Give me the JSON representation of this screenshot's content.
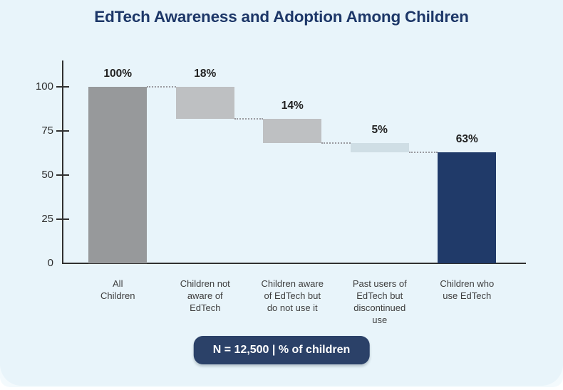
{
  "title": "EdTech Awareness and Adoption Among Children",
  "footer": {
    "badge": "N = 12,500 | % of children"
  },
  "colors": {
    "card_background": "#e8f4fa",
    "card_under_layer": "#f3fafd",
    "page_background": "#ffffff",
    "title": "#1d3768",
    "axis": "#303030",
    "tick_label": "#2d2d2d",
    "value_label": "#222222",
    "category_label": "#3d3d3d",
    "connector": "#9a9aa0",
    "badge_background": "#2b4168",
    "badge_text": "#ffffff",
    "bar_total_start": "#97999b",
    "bar_decrement": "#bec0c2",
    "bar_decrement_small": "#cfdee5",
    "bar_total_end": "#203a69"
  },
  "chart_data": {
    "type": "bar",
    "subtype": "waterfall",
    "title": "EdTech Awareness and Adoption Among Children",
    "xlabel": "",
    "ylabel": "",
    "ylim": [
      0,
      100
    ],
    "yticks": [
      0,
      25,
      50,
      75,
      100
    ],
    "grid": false,
    "legend": "none",
    "annotation": "N = 12,500 | % of children",
    "connector_style": "dotted",
    "bars": [
      {
        "category": "All\nChildren",
        "value": 100,
        "value_label": "100%",
        "start": 0,
        "end": 100,
        "color": "#97999b",
        "role": "total-start"
      },
      {
        "category": "Children not\naware of\nEdTech",
        "value": 18,
        "value_label": "18%",
        "start": 100,
        "end": 82,
        "color": "#bec0c2",
        "role": "decrement"
      },
      {
        "category": "Children aware\nof EdTech but\ndo not use it",
        "value": 14,
        "value_label": "14%",
        "start": 82,
        "end": 68,
        "color": "#bec0c2",
        "role": "decrement"
      },
      {
        "category": "Past users of\nEdTech but\ndiscontinued\nuse",
        "value": 5,
        "value_label": "5%",
        "start": 68,
        "end": 63,
        "color": "#cfdee5",
        "role": "decrement"
      },
      {
        "category": "Children who\nuse EdTech",
        "value": 63,
        "value_label": "63%",
        "start": 0,
        "end": 63,
        "color": "#203a69",
        "role": "total-end"
      }
    ]
  }
}
